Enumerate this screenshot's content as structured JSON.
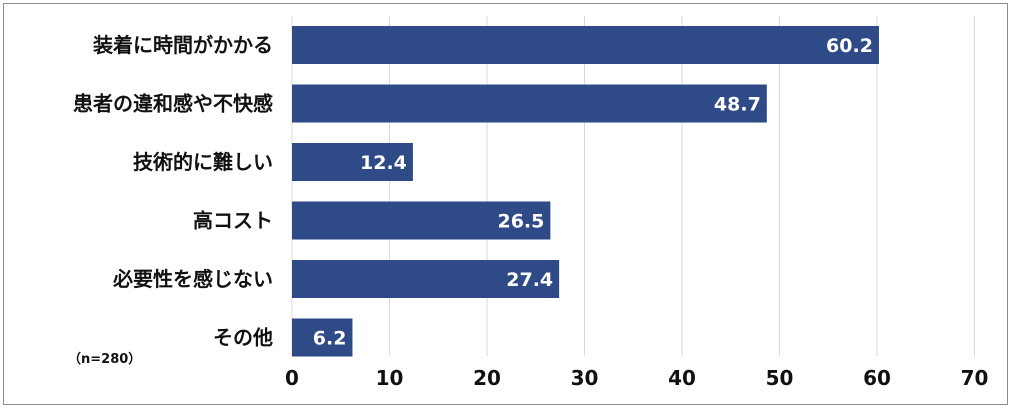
{
  "chart_data": {
    "type": "bar",
    "orientation": "horizontal",
    "title": "",
    "note": "（n=280）",
    "categories": [
      "装着に時間がかかる",
      "患者の違和感や不快感",
      "技術的に難しい",
      "高コスト",
      "必要性を感じない",
      "その他"
    ],
    "values": [
      60.2,
      48.7,
      12.4,
      26.5,
      27.4,
      6.2
    ],
    "value_labels": [
      "60.2",
      "48.7",
      "12.4",
      "26.5",
      "27.4",
      "6.2"
    ],
    "xlim": [
      0,
      70
    ],
    "ticks": [
      "0",
      "10",
      "20",
      "30",
      "40",
      "50",
      "60",
      "70"
    ],
    "tick_values": [
      0,
      10,
      20,
      30,
      40,
      50,
      60,
      70
    ],
    "grid": "vertical",
    "bar_color": "#2e4a87",
    "grid_color": "#d9d9d9"
  }
}
